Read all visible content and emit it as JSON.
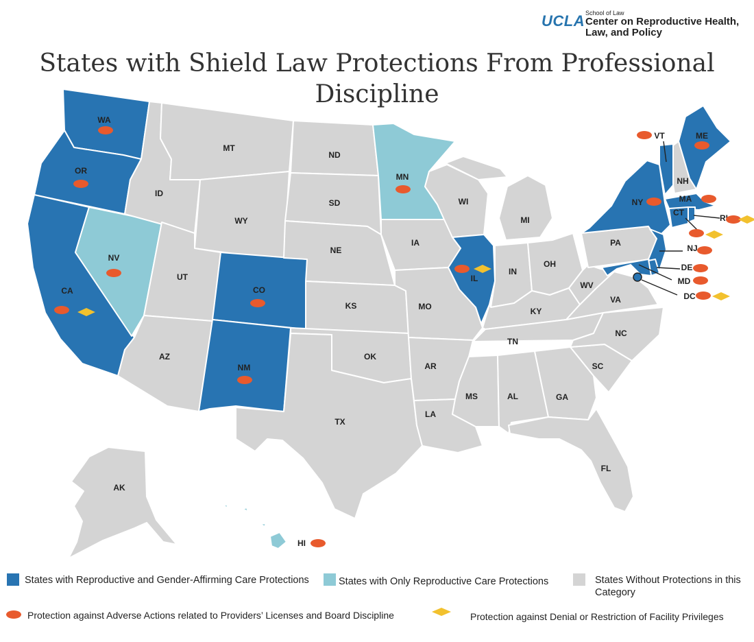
{
  "logo": {
    "brand": "UCLA",
    "school": "School of Law",
    "center": "Center on Reproductive Health, Law, and Policy"
  },
  "title": "States with Shield Law Protections From Professional Discipline",
  "colors": {
    "full": "#2874b2",
    "repro_only": "#8ecad6",
    "none": "#d4d4d4",
    "license_marker": "#e85a2d",
    "facility_marker": "#f2c12e"
  },
  "states": {
    "full_protection": [
      "WA",
      "OR",
      "CA",
      "CO",
      "NM",
      "IL",
      "NY",
      "VT",
      "ME",
      "MA",
      "CT",
      "RI",
      "NJ",
      "DE",
      "MD",
      "DC"
    ],
    "repro_only": [
      "MN",
      "NV",
      "HI"
    ],
    "no_protection": [
      "MT",
      "ND",
      "ID",
      "SD",
      "WY",
      "NE",
      "UT",
      "KS",
      "AZ",
      "OK",
      "TX",
      "IA",
      "MO",
      "AR",
      "LA",
      "WI",
      "MI",
      "IN",
      "OH",
      "KY",
      "TN",
      "MS",
      "AL",
      "GA",
      "FL",
      "SC",
      "NC",
      "VA",
      "WV",
      "PA",
      "NH",
      "AK"
    ]
  },
  "markers": {
    "license_discipline": [
      "WA",
      "OR",
      "CA",
      "NV",
      "CO",
      "NM",
      "MN",
      "IL",
      "NY",
      "VT",
      "ME",
      "MA",
      "CT",
      "RI",
      "NJ",
      "DE",
      "MD",
      "DC",
      "HI"
    ],
    "facility_privileges": [
      "CA",
      "IL",
      "CT",
      "RI",
      "DC"
    ]
  },
  "labels": {
    "WA": "WA",
    "OR": "OR",
    "CA": "CA",
    "NV": "NV",
    "ID": "ID",
    "MT": "MT",
    "WY": "WY",
    "UT": "UT",
    "AZ": "AZ",
    "CO": "CO",
    "NM": "NM",
    "ND": "ND",
    "SD": "SD",
    "NE": "NE",
    "KS": "KS",
    "OK": "OK",
    "TX": "TX",
    "MN": "MN",
    "IA": "IA",
    "MO": "MO",
    "AR": "AR",
    "LA": "LA",
    "WI": "WI",
    "IL": "IL",
    "MS": "MS",
    "MI": "MI",
    "IN": "IN",
    "KY": "KY",
    "TN": "TN",
    "AL": "AL",
    "OH": "OH",
    "GA": "GA",
    "FL": "FL",
    "SC": "SC",
    "NC": "NC",
    "VA": "VA",
    "WV": "WV",
    "PA": "PA",
    "NY": "NY",
    "VT": "VT",
    "NH": "NH",
    "ME": "ME",
    "MA": "MA",
    "CT": "CT",
    "RI": "RI",
    "NJ": "NJ",
    "DE": "DE",
    "MD": "MD",
    "DC": "DC",
    "AK": "AK",
    "HI": "HI"
  },
  "legend": {
    "full": "States with Reproductive and Gender-Affirming Care Protections",
    "repro_only": "States with Only Reproductive Care Protections",
    "none": "States Without Protections in this Category",
    "license": "Protection against Adverse Actions related to Providers’ Licenses and Board Discipline",
    "facility": "Protection against Denial or Restriction of Facility Privileges"
  }
}
